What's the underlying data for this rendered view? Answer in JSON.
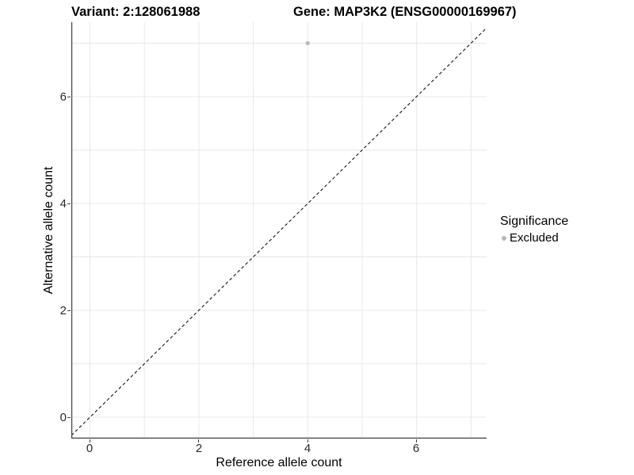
{
  "figure": {
    "title_variant": "Variant: 2:128061988",
    "title_gene": "Gene: MAP3K2 (ENSG00000169967)"
  },
  "chart_data": {
    "type": "scatter",
    "title": "Variant: 2:128061988   Gene: MAP3K2 (ENSG00000169967)",
    "xlabel": "Reference allele count",
    "ylabel": "Alternative allele count",
    "x_ticks": [
      "0",
      "2",
      "4",
      "6"
    ],
    "y_ticks": [
      "6",
      "4",
      "2",
      "0"
    ],
    "xlim": [
      -0.35,
      7.3
    ],
    "ylim": [
      -0.35,
      7.35
    ],
    "gridlines_at": [
      0,
      1,
      2,
      3,
      4,
      5,
      6,
      7
    ],
    "grid": "on",
    "series": [
      {
        "name": "Excluded",
        "points": [
          {
            "x": 4,
            "y": 7
          }
        ]
      }
    ],
    "reference_line": {
      "type": "identity",
      "slope": 1,
      "intercept": 0,
      "style": "dashed"
    },
    "legend": {
      "title": "Significance",
      "position": "right",
      "items": [
        {
          "label": "Excluded",
          "color": "#b8b8b8"
        }
      ]
    }
  },
  "colors": {
    "background": "#ffffff",
    "gridline": "#e8e8e8",
    "axis_line": "#404040",
    "tick_text": "#2b2b2b",
    "point_excluded": "#b8b8b8",
    "dashed_line": "#000000"
  }
}
